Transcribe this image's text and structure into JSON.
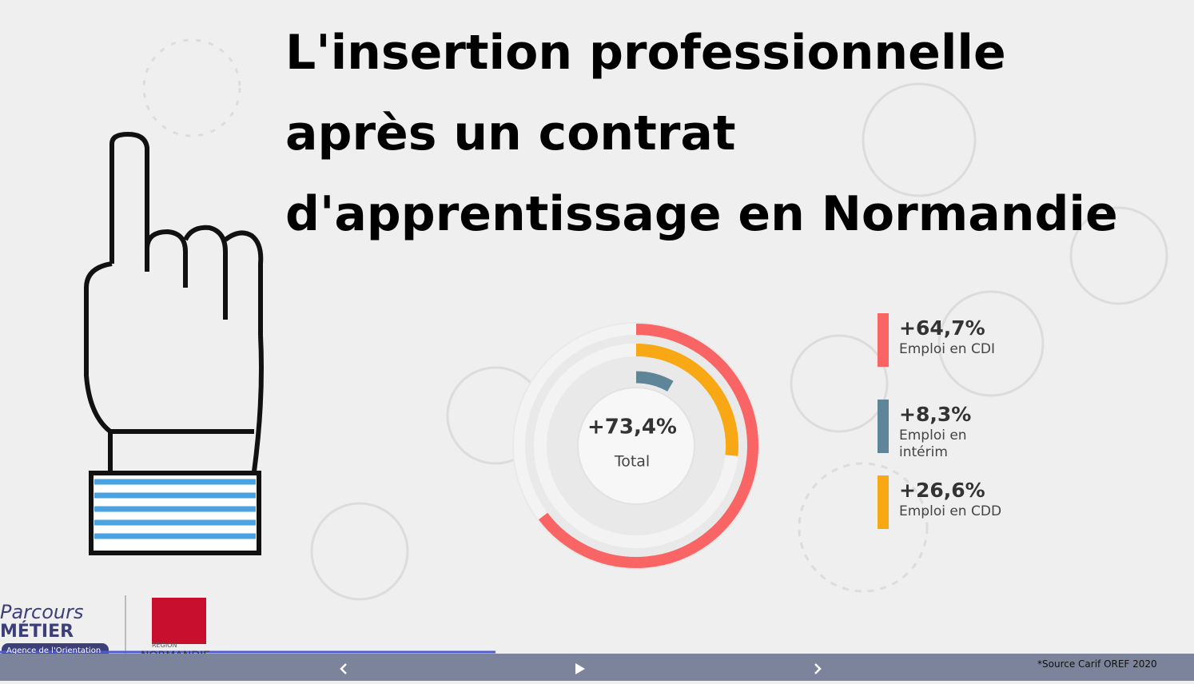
{
  "title": "L'insertion professionnelle après un contrat d'apprentissage en Normandie",
  "chart_data": {
    "type": "radial-bar",
    "categories": [
      "Emploi en CDI",
      "Emploi en intérim",
      "Emploi en CDD"
    ],
    "values": [
      64.7,
      8.3,
      26.6
    ],
    "value_labels": [
      "+64,7%",
      "+8,3%",
      "+26,6%"
    ],
    "colors": [
      "#f96565",
      "#5f8599",
      "#f8a815"
    ],
    "ylim": [
      0,
      100
    ],
    "total": 73.4,
    "total_label": "+73,4%",
    "total_name": "Total"
  },
  "logos": {
    "parcours": "Parcours",
    "metier": "MÉTIER",
    "agence": "Agence de l'Orientation",
    "region": "RÉGION",
    "normandie": "NORMANDIE"
  },
  "source": "*Source Carif OREF 2020"
}
